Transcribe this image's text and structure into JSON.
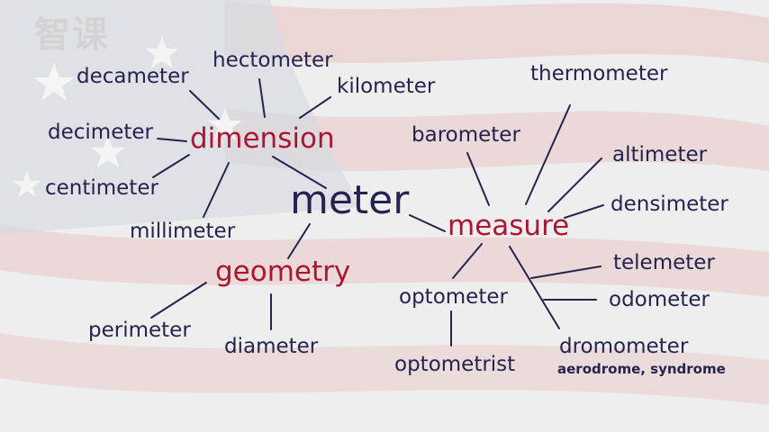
{
  "watermark": "智课",
  "center": "meter",
  "hubs": {
    "dimension": "dimension",
    "measure": "measure",
    "geometry": "geometry"
  },
  "dimension_words": [
    "decameter",
    "hectometer",
    "kilometer",
    "decimeter",
    "centimeter",
    "millimeter"
  ],
  "measure_words": [
    "thermometer",
    "barometer",
    "altimeter",
    "densimeter",
    "telemeter",
    "odometer",
    "optometer",
    "optometrist",
    "dromometer"
  ],
  "measure_note": "aerodrome, syndrome",
  "geometry_words": [
    "perimeter",
    "diameter"
  ],
  "colors": {
    "word": "#24244f",
    "hub": "#ad1530",
    "line": "#24244f",
    "background_stripe": "#e7c8c8",
    "background_blue": "#c9d0dc"
  }
}
